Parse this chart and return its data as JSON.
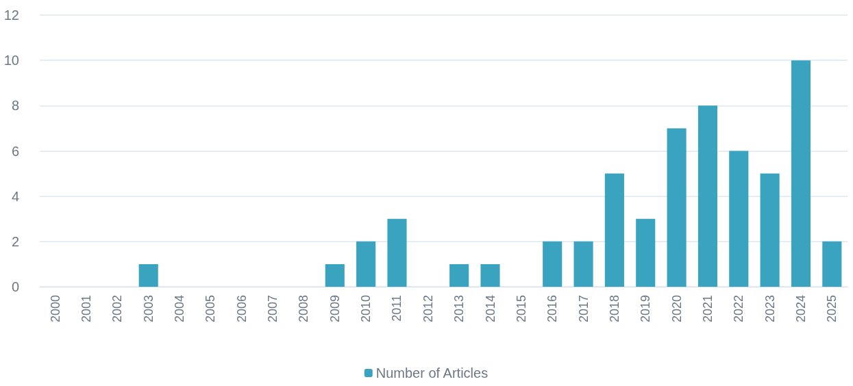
{
  "chart_data": {
    "type": "bar",
    "categories": [
      "2000",
      "2001",
      "2002",
      "2003",
      "2004",
      "2005",
      "2006",
      "2007",
      "2008",
      "2009",
      "2010",
      "2011",
      "2012",
      "2013",
      "2014",
      "2015",
      "2016",
      "2017",
      "2018",
      "2019",
      "2020",
      "2021",
      "2022",
      "2023",
      "2024",
      "2025"
    ],
    "series": [
      {
        "name": "Number of Articles",
        "color": "#3aa3bf",
        "values": [
          0,
          0,
          0,
          1,
          0,
          0,
          0,
          0,
          0,
          1,
          2,
          3,
          0,
          1,
          1,
          0,
          2,
          2,
          5,
          3,
          7,
          8,
          6,
          5,
          10,
          2
        ]
      }
    ],
    "ylim": [
      0,
      12
    ],
    "yticks": [
      0,
      2,
      4,
      6,
      8,
      10,
      12
    ],
    "grid": "y",
    "legend": "bottom"
  }
}
